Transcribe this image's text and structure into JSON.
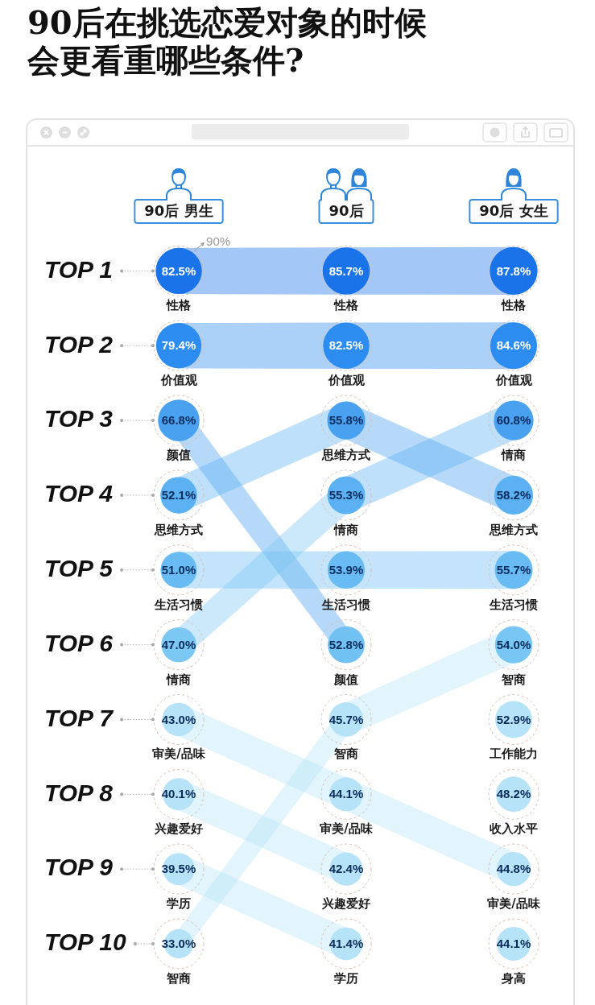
{
  "chart_data": {
    "type": "other",
    "title": "90后在挑选恋爱对象的时候会更看重哪些条件?",
    "categories": [
      "TOP 1",
      "TOP 2",
      "TOP 3",
      "TOP 4",
      "TOP 5",
      "TOP 6",
      "TOP 7",
      "TOP 8",
      "TOP 9",
      "TOP 10"
    ],
    "series": [
      {
        "name": "90后 男生",
        "values": [
          82.5,
          79.4,
          66.8,
          52.1,
          51.0,
          47.0,
          43.0,
          40.1,
          39.5,
          33.0
        ],
        "value_labels": [
          "82.5%",
          "79.4%",
          "66.8%",
          "52.1%",
          "51.0%",
          "47.0%",
          "43.0%",
          "40.1%",
          "39.5%",
          "33.0%"
        ],
        "colors": [
          "#1a73e8",
          "#2d8cef",
          "#4aa1ef",
          "#5cb1f2",
          "#69bbf3",
          "#7cc8f5",
          "#b6e3f8",
          "#b6e3f8",
          "#b6e3f8",
          "#b6e3f8"
        ]
      },
      {
        "name": "90后",
        "values": [
          85.7,
          82.5,
          55.8,
          55.3,
          53.9,
          52.8,
          45.7,
          44.1,
          42.4,
          41.4
        ],
        "value_labels": [
          "85.7%",
          "82.5%",
          "55.8%",
          "55.3%",
          "53.9%",
          "52.8%",
          "45.7%",
          "44.1%",
          "42.4%",
          "41.4%"
        ],
        "colors": [
          "#1a73e8",
          "#2d8cef",
          "#4aa1ef",
          "#5cb1f2",
          "#69bbf3",
          "#72c1f3",
          "#b6e3f8",
          "#b6e3f8",
          "#b6e3f8",
          "#b6e3f8"
        ]
      },
      {
        "name": "90后 女生",
        "values": [
          87.8,
          84.6,
          60.8,
          58.2,
          55.7,
          54.0,
          52.9,
          48.2,
          44.8,
          44.1
        ],
        "value_labels": [
          "87.8%",
          "84.6%",
          "60.8%",
          "58.2%",
          "55.7%",
          "54.0%",
          "52.9%",
          "48.2%",
          "44.8%",
          "44.1%"
        ],
        "colors": [
          "#1a73e8",
          "#2d8cef",
          "#4aa1ef",
          "#5cb1f2",
          "#69bbf3",
          "#78c6f4",
          "#b6e3f8",
          "#b6e3f8",
          "#b6e3f8",
          "#b6e3f8"
        ]
      }
    ],
    "annotations": [
      "性格",
      "性格",
      "性格",
      "价值观",
      "价值观",
      "价值观",
      "颜值",
      "思维方式",
      "情商",
      "思维方式",
      "情商",
      "思维方式",
      "生活习惯",
      "生活习惯",
      "生活习惯",
      "情商",
      "颜值",
      "智商",
      "审美/品味",
      "智商",
      "工作能力",
      "兴趣爱好",
      "审美/品味",
      "收入水平",
      "学历",
      "兴趣爱好",
      "审美/品味",
      "智商",
      "学历",
      "身高",
      "90%"
    ]
  }
}
